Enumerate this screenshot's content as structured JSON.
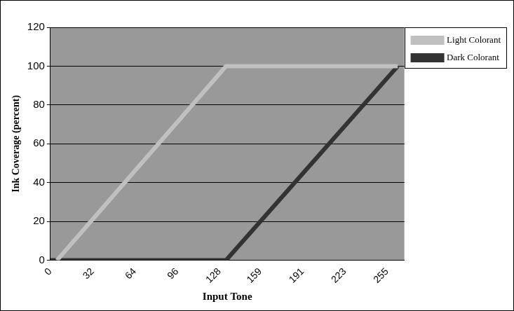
{
  "chart_data": {
    "type": "line",
    "x_label": "Input Tone",
    "y_label": "Ink Coverage (percent)",
    "x": [
      0,
      5,
      133,
      263
    ],
    "series": [
      {
        "name": "Light Colorant",
        "color": "#c0c0c0",
        "values": [
          null,
          0,
          100,
          100
        ]
      },
      {
        "name": "Dark Colorant",
        "color": "#333333",
        "values": [
          0,
          0,
          0,
          100
        ]
      }
    ],
    "xlim": [
      0,
      268
    ],
    "xticks": [
      0,
      32,
      64,
      96,
      128,
      159,
      191,
      223,
      255
    ],
    "ylim": [
      0,
      120
    ],
    "yticks": [
      0,
      20,
      40,
      60,
      80,
      100,
      120
    ],
    "grid": "y",
    "legend": "right"
  }
}
